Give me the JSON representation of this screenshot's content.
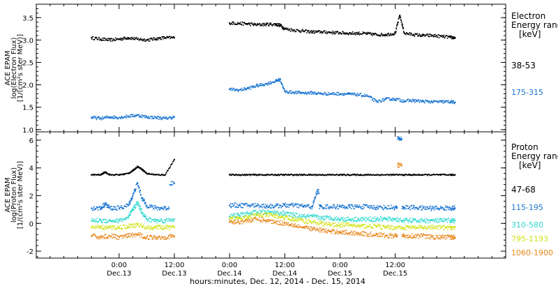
{
  "chart_data": [
    {
      "type": "scatter",
      "ylabel_lines": [
        "ACE EPAM",
        "log(Electron Flux)",
        "[1/(cm²s ster MeV)]"
      ],
      "ylim": [
        0.95,
        3.8
      ],
      "yticks": [
        1.0,
        1.5,
        2.0,
        2.5,
        3.0,
        3.5
      ],
      "ytick_labels": [
        "1.0",
        "1.5",
        "2.0",
        "2.5",
        "3.0",
        "3.5"
      ],
      "legend_title_lines": [
        "Electron",
        "Energy range",
        "[keV]"
      ],
      "series": [
        {
          "name": "38-53",
          "color": "#000000",
          "x": [
            -6,
            -4,
            -2,
            0,
            2,
            4,
            6,
            8,
            10,
            12,
            24,
            26,
            28,
            30,
            32,
            34,
            35,
            36,
            38,
            40,
            42,
            44,
            46,
            48,
            50,
            52,
            54,
            56,
            58,
            60,
            61,
            62,
            64,
            66,
            68,
            70,
            72,
            73
          ],
          "y": [
            3.05,
            3.02,
            3.0,
            3.02,
            3.05,
            3.02,
            3.0,
            3.03,
            3.05,
            3.05,
            3.38,
            3.37,
            3.36,
            3.34,
            3.35,
            3.35,
            3.33,
            3.25,
            3.22,
            3.2,
            3.18,
            3.18,
            3.17,
            3.16,
            3.15,
            3.15,
            3.14,
            3.12,
            3.12,
            3.15,
            3.55,
            3.15,
            3.12,
            3.1,
            3.1,
            3.08,
            3.06,
            3.05
          ]
        },
        {
          "name": "175-315",
          "color": "#1a75d2",
          "x": [
            -6,
            -4,
            -2,
            0,
            2,
            4,
            6,
            8,
            10,
            12,
            24,
            26,
            28,
            30,
            32,
            34,
            35,
            36,
            38,
            40,
            42,
            44,
            46,
            48,
            50,
            52,
            54,
            56,
            58,
            60,
            62,
            64,
            66,
            68,
            70,
            72,
            73
          ],
          "y": [
            1.27,
            1.25,
            1.28,
            1.27,
            1.3,
            1.32,
            1.28,
            1.27,
            1.25,
            1.28,
            1.9,
            1.88,
            1.92,
            1.98,
            2.02,
            2.08,
            2.12,
            1.85,
            1.83,
            1.82,
            1.82,
            1.8,
            1.8,
            1.8,
            1.79,
            1.78,
            1.75,
            1.62,
            1.68,
            1.68,
            1.64,
            1.65,
            1.63,
            1.62,
            1.62,
            1.62,
            1.61
          ]
        }
      ]
    },
    {
      "type": "scatter",
      "ylabel_lines": [
        "ACE EPAM",
        "log(Proton Flux)",
        "[1/(cm²s ster MeV)]"
      ],
      "ylim": [
        -2.5,
        6.6
      ],
      "yticks": [
        -2,
        0,
        2,
        4,
        6
      ],
      "ytick_labels": [
        "-2",
        "0",
        "2",
        "4",
        "6"
      ],
      "legend_title_lines": [
        "Proton",
        "Energy range",
        "[keV]"
      ],
      "series": [
        {
          "name": "47-68",
          "color": "#000000",
          "x": [
            -6,
            -4,
            -3,
            -2,
            0,
            2,
            3,
            4,
            5,
            6,
            8,
            10,
            12,
            24,
            26,
            28,
            30,
            32,
            34,
            36,
            38,
            40,
            42,
            44,
            46,
            48,
            50,
            52,
            54,
            56,
            58,
            60,
            62,
            64,
            66,
            68,
            70,
            72,
            73
          ],
          "y": [
            3.5,
            3.5,
            3.7,
            3.5,
            3.5,
            3.6,
            3.8,
            4.1,
            3.9,
            3.6,
            3.5,
            3.5,
            4.6,
            3.5,
            3.5,
            3.5,
            3.5,
            3.5,
            3.5,
            3.5,
            3.5,
            3.5,
            3.5,
            3.5,
            3.5,
            3.5,
            3.5,
            3.5,
            3.5,
            3.5,
            3.5,
            3.5,
            3.5,
            3.5,
            3.5,
            3.5,
            3.5,
            3.5,
            3.5
          ]
        },
        {
          "name": "115-195",
          "color": "#1a75d2",
          "x": [
            -6,
            -4,
            -3,
            -2,
            0,
            2,
            3,
            4,
            5,
            6,
            8,
            10,
            12,
            24,
            26,
            28,
            30,
            32,
            34,
            36,
            38,
            40,
            42,
            43,
            44,
            46,
            48,
            50,
            52,
            54,
            56,
            58,
            60,
            61,
            62,
            64,
            66,
            68,
            70,
            72,
            73
          ],
          "y": [
            1.1,
            1.1,
            1.4,
            1.1,
            1.1,
            1.3,
            2.0,
            2.9,
            1.8,
            1.3,
            1.1,
            1.1,
            2.9,
            1.3,
            1.3,
            1.3,
            1.3,
            1.25,
            1.25,
            1.3,
            1.3,
            1.25,
            1.2,
            2.3,
            1.2,
            1.2,
            1.2,
            1.2,
            1.2,
            1.2,
            1.15,
            1.15,
            1.15,
            6.1,
            1.15,
            1.15,
            1.1,
            1.1,
            1.1,
            1.1,
            1.1
          ]
        },
        {
          "name": "310-580",
          "color": "#2fd9cf",
          "x": [
            -6,
            -4,
            -2,
            0,
            2,
            3,
            4,
            5,
            6,
            8,
            10,
            12,
            24,
            26,
            28,
            30,
            32,
            34,
            36,
            38,
            40,
            42,
            44,
            46,
            48,
            50,
            52,
            54,
            56,
            58,
            60,
            62,
            64,
            66,
            68,
            70,
            72,
            73
          ],
          "y": [
            0.2,
            0.2,
            0.2,
            0.2,
            0.4,
            1.0,
            1.5,
            0.8,
            0.3,
            0.2,
            0.2,
            0.3,
            0.5,
            0.6,
            0.7,
            0.8,
            0.8,
            0.8,
            0.7,
            0.6,
            0.5,
            0.5,
            0.4,
            0.4,
            0.3,
            0.3,
            0.3,
            0.3,
            0.3,
            0.3,
            0.3,
            0.2,
            0.2,
            0.2,
            0.2,
            0.2,
            0.2,
            0.2
          ]
        },
        {
          "name": "795-1193",
          "color": "#d2e31a",
          "x": [
            -6,
            -4,
            -2,
            0,
            2,
            4,
            6,
            8,
            10,
            12,
            24,
            26,
            28,
            30,
            32,
            34,
            36,
            38,
            40,
            42,
            44,
            46,
            48,
            50,
            52,
            54,
            56,
            58,
            60,
            62,
            64,
            66,
            68,
            70,
            72,
            73
          ],
          "y": [
            -0.3,
            -0.3,
            -0.3,
            -0.3,
            -0.2,
            -0.1,
            -0.3,
            -0.3,
            -0.3,
            -0.3,
            0.3,
            0.4,
            0.5,
            0.6,
            0.6,
            0.55,
            0.4,
            0.3,
            0.2,
            0.1,
            0.0,
            -0.1,
            -0.1,
            -0.1,
            -0.2,
            -0.2,
            -0.2,
            -0.3,
            -0.3,
            -0.3,
            -0.3,
            -0.3,
            -0.3,
            -0.3,
            -0.3,
            -0.3
          ]
        },
        {
          "name": "1060-1900",
          "color": "#e8861a",
          "x": [
            -6,
            -4,
            -2,
            0,
            2,
            4,
            6,
            8,
            10,
            12,
            24,
            26,
            28,
            30,
            32,
            34,
            36,
            38,
            40,
            42,
            44,
            46,
            48,
            50,
            52,
            54,
            56,
            58,
            60,
            61,
            62,
            64,
            66,
            68,
            70,
            72,
            73
          ],
          "y": [
            -0.9,
            -1.0,
            -0.9,
            -1.0,
            -0.9,
            -0.8,
            -1.0,
            -1.0,
            -1.0,
            -0.9,
            0.1,
            0.1,
            0.2,
            0.3,
            0.2,
            0.1,
            0.0,
            -0.1,
            -0.3,
            -0.4,
            -0.5,
            -0.6,
            -0.6,
            -0.7,
            -0.7,
            -0.8,
            -0.8,
            -0.9,
            -0.9,
            4.2,
            -0.9,
            -0.9,
            -0.9,
            -1.0,
            -1.0,
            -1.0,
            -1.0
          ]
        }
      ]
    }
  ],
  "xaxis": {
    "xlabel": "hours:minutes, Dec. 12, 2014 - Dec. 15, 2014",
    "xlim": [
      -18,
      84
    ],
    "ticks": [
      {
        "x": 0,
        "line1": "0:00",
        "line2": "Dec.13"
      },
      {
        "x": 12,
        "line1": "12:00",
        "line2": "Dec.13"
      },
      {
        "x": 24,
        "line1": "0:00",
        "line2": "Dec.14"
      },
      {
        "x": 36,
        "line1": "12:00",
        "line2": "Dec.14"
      },
      {
        "x": 48,
        "line1": "0:00",
        "line2": "Dec.15"
      },
      {
        "x": 60,
        "line1": "12:00",
        "line2": "Dec.15"
      }
    ],
    "minor_step": 3
  }
}
